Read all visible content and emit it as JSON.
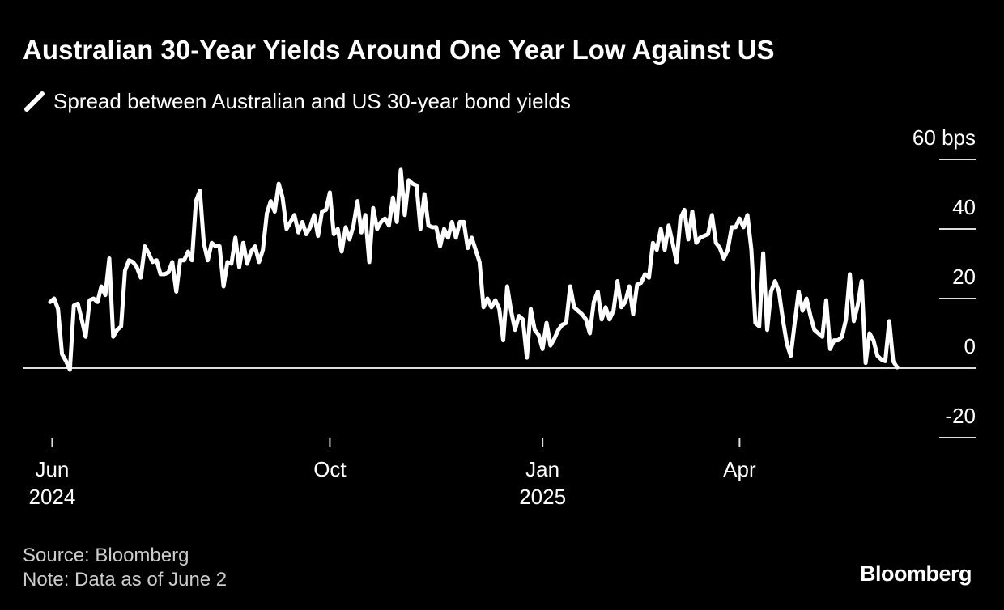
{
  "chart_data": {
    "type": "line",
    "title": "Australian 30-Year Yields Around One Year Low Against US",
    "source": "Source: Bloomberg",
    "note": "Note: Data as of June 2",
    "brand": "Bloomberg",
    "series": [
      {
        "name": "Spread between Australian and US 30-year bond yields",
        "color": "#ffffff",
        "values": [
          19,
          20,
          17,
          4,
          2,
          -0.5,
          18,
          18.5,
          14,
          9,
          19.5,
          20,
          19,
          23.5,
          21,
          31.5,
          9,
          11,
          12,
          28,
          31,
          30.5,
          29,
          26,
          35,
          33,
          30.5,
          31,
          27,
          27,
          27.5,
          30.5,
          22,
          31,
          31,
          33.5,
          31,
          48,
          51,
          36,
          31,
          36,
          35,
          35,
          23.5,
          30.5,
          30,
          37.5,
          29,
          36,
          30,
          33.5,
          35,
          30.5,
          34,
          44.5,
          48,
          45,
          53,
          49,
          40,
          42,
          44,
          39,
          42,
          38.5,
          40.5,
          44,
          38,
          45,
          45.5,
          50.5,
          38.5,
          40,
          33.5,
          40.5,
          37,
          41,
          48,
          39,
          44,
          30.5,
          46,
          40,
          42,
          43,
          41,
          49,
          42,
          57,
          44,
          54,
          53,
          52.5,
          40,
          50,
          41,
          40.5,
          40.5,
          35,
          40,
          37.5,
          42,
          37.5,
          42,
          42,
          34.5,
          37.5,
          34,
          30.5,
          17.5,
          20,
          17.5,
          19.5,
          17,
          8,
          23.5,
          16.5,
          11,
          15,
          14,
          3,
          17,
          11,
          9.5,
          5.5,
          13,
          6.5,
          8.5,
          11,
          12.5,
          13,
          23.5,
          17.5,
          16.5,
          15.5,
          14,
          10,
          19,
          22,
          14,
          17.5,
          14,
          16.5,
          25,
          17.5,
          19,
          23.5,
          15.5,
          24,
          24.5,
          27,
          26,
          36,
          34,
          40,
          34,
          41,
          36,
          30.5,
          43,
          45.5,
          37,
          45,
          36,
          37.5,
          38,
          38.5,
          44,
          36,
          34.5,
          31.5,
          34,
          40.5,
          40.5,
          43,
          40.5,
          44,
          34,
          13,
          12,
          33,
          11,
          22,
          25,
          22,
          14,
          7,
          3.5,
          13,
          22,
          16.5,
          20,
          15,
          11,
          10,
          9,
          19.5,
          5.5,
          8,
          8,
          9,
          14,
          27,
          13.5,
          18,
          25,
          1.5,
          10,
          8,
          3.5,
          2.5,
          2,
          13.5,
          2,
          0.2
        ]
      }
    ],
    "xlim": [
      0,
      215
    ],
    "xticks": [
      {
        "value": 0.5,
        "label": "Jun\n2024"
      },
      {
        "value": 71,
        "label": "Oct"
      },
      {
        "value": 125,
        "label": "Jan\n2025"
      },
      {
        "value": 175,
        "label": "Apr"
      }
    ],
    "ylim": [
      -20,
      60
    ],
    "yticks": [
      {
        "value": 60,
        "label": "60 bps"
      },
      40,
      20,
      0,
      -20
    ]
  }
}
